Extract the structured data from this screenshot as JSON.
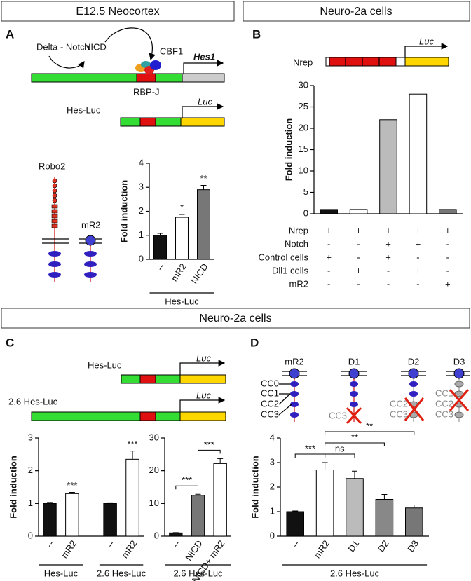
{
  "headers": {
    "top_left": "E12.5 Neocortex",
    "top_right": "Neuro-2a cells",
    "middle": "Neuro-2a cells"
  },
  "panel_labels": [
    "A",
    "B",
    "C",
    "D"
  ],
  "diagram_a": {
    "signal": "Delta - Notch",
    "nicd": "NICD",
    "cbf1": "CBF1",
    "gene": "Hes1",
    "rbpj": "RBP-J",
    "reporter": "Hes-Luc",
    "luc": "Luc",
    "receptors": [
      "Robo2",
      "mR2"
    ]
  },
  "diagram_b": {
    "construct": "Nrep",
    "luc": "Luc"
  },
  "diagram_c": {
    "constructs": [
      {
        "name": "Hes-Luc",
        "luc": "Luc"
      },
      {
        "name": "2.6 Hes-Luc",
        "luc": "Luc"
      }
    ]
  },
  "diagram_d": {
    "constructs": [
      {
        "name": "mR2",
        "labels": [
          "CC0",
          "CC1",
          "CC2",
          "CC3"
        ]
      },
      {
        "name": "D1",
        "labels": [
          "CC3"
        ]
      },
      {
        "name": "D2",
        "labels": [
          "CC2",
          "CC3"
        ]
      },
      {
        "name": "D3",
        "labels": [
          "CC1",
          "CC2",
          "CC3"
        ]
      }
    ]
  },
  "chart_data": [
    {
      "type": "bar",
      "y_label": "Fold induction",
      "categories": [
        "--",
        "mR2",
        "NICD"
      ],
      "values": [
        1.0,
        1.75,
        2.9
      ],
      "errors": [
        0.08,
        0.12,
        0.18
      ],
      "colors": [
        "#111111",
        "#ffffff",
        "#777777"
      ],
      "ylim": [
        0,
        4
      ],
      "yticks": [
        0,
        1,
        2,
        3,
        4
      ],
      "significance": [
        null,
        "*",
        "**"
      ],
      "groups": [
        {
          "label": "Hes-Luc",
          "from": 0,
          "to": 2
        }
      ]
    },
    {
      "type": "bar",
      "y_label": "Fold induction",
      "values": [
        1,
        1,
        22,
        28,
        1
      ],
      "colors": [
        "#111111",
        "#ffffff",
        "#bbbbbb",
        "#ffffff",
        "#777777"
      ],
      "ylim": [
        0,
        30
      ],
      "yticks": [
        0,
        5,
        10,
        15,
        20,
        25,
        30
      ],
      "table": [
        {
          "label": "Nrep",
          "cells": [
            "+",
            "+",
            "+",
            "+",
            "+"
          ]
        },
        {
          "label": "Notch",
          "cells": [
            "-",
            "-",
            "+",
            "+",
            "-"
          ]
        },
        {
          "label": "Control cells",
          "cells": [
            "+",
            "-",
            "+",
            "-",
            "-"
          ]
        },
        {
          "label": "Dll1 cells",
          "cells": [
            "-",
            "+",
            "-",
            "+",
            "-"
          ]
        },
        {
          "label": "mR2",
          "cells": [
            "-",
            "-",
            "-",
            "-",
            "+"
          ]
        }
      ]
    },
    {
      "type": "bar",
      "y_label": "Fold induction",
      "categories": [
        "--",
        "mR2",
        "--",
        "mR2"
      ],
      "values": [
        1.0,
        1.3,
        1.0,
        2.35
      ],
      "errors": [
        0.03,
        0.04,
        0.02,
        0.25
      ],
      "colors": [
        "#111111",
        "#ffffff",
        "#111111",
        "#ffffff"
      ],
      "ylim": [
        0,
        3
      ],
      "yticks": [
        0,
        1,
        2,
        3
      ],
      "significance": [
        null,
        "***",
        null,
        "***"
      ],
      "groups": [
        {
          "label": "Hes-Luc",
          "from": 0,
          "to": 1
        },
        {
          "label": "2.6 Hes-Luc",
          "from": 2,
          "to": 3
        }
      ]
    },
    {
      "type": "bar",
      "categories": [
        "--",
        "NICD",
        "NICD+ mR2"
      ],
      "values": [
        1,
        12.5,
        22.2
      ],
      "errors": [
        0.1,
        0.3,
        1.5
      ],
      "colors": [
        "#111111",
        "#777777",
        "#ffffff"
      ],
      "ylim": [
        0,
        30
      ],
      "yticks": [
        0,
        10,
        20,
        30
      ],
      "brackets": [
        {
          "from": 0,
          "to": 1,
          "label": "***"
        },
        {
          "from": 1,
          "to": 2,
          "label": "***"
        }
      ],
      "groups": [
        {
          "label": "2.6 Hes-Luc",
          "from": 0,
          "to": 2
        }
      ]
    },
    {
      "type": "bar",
      "y_label": "Fold induction",
      "categories": [
        "--",
        "mR2",
        "D1",
        "D2",
        "D3"
      ],
      "values": [
        1.0,
        2.7,
        2.35,
        1.5,
        1.15
      ],
      "errors": [
        0.03,
        0.3,
        0.3,
        0.2,
        0.12
      ],
      "colors": [
        "#111111",
        "#ffffff",
        "#bbbbbb",
        "#888888",
        "#777777"
      ],
      "ylim": [
        0,
        4
      ],
      "yticks": [
        0,
        1,
        2,
        3,
        4
      ],
      "brackets": [
        {
          "from": 0,
          "to": 1,
          "label": "***"
        },
        {
          "from": 1,
          "to": 2,
          "label": "ns"
        },
        {
          "from": 1,
          "to": 3,
          "label": "**"
        },
        {
          "from": 1,
          "to": 4,
          "label": "**"
        }
      ],
      "groups": [
        {
          "label": "2.6 Hes-Luc",
          "from": 0,
          "to": 4
        }
      ]
    }
  ]
}
